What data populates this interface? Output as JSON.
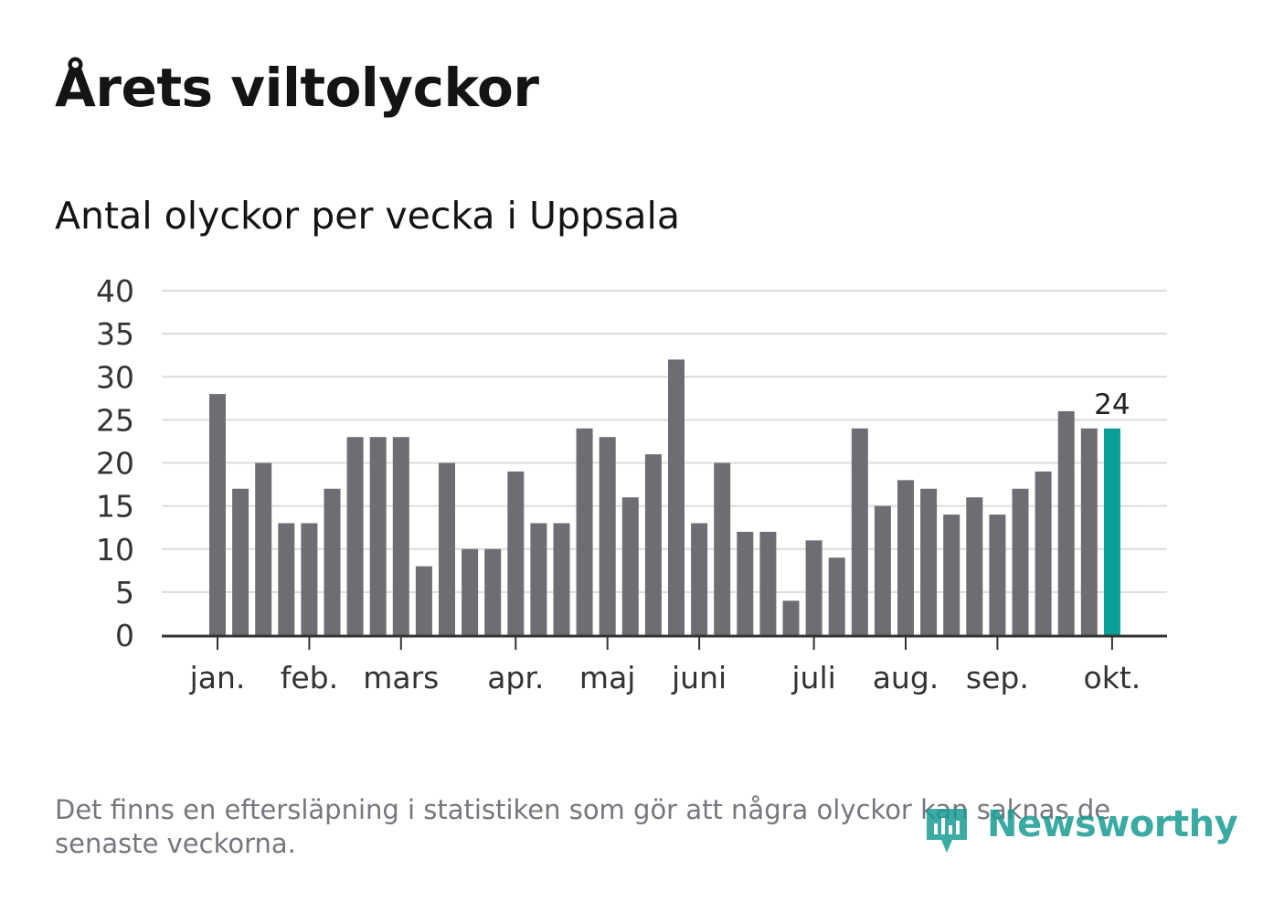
{
  "title": "Årets viltolyckor",
  "subtitle": "Antal olyckor per vecka i Uppsala",
  "footnote": "Det finns en eftersläpning i statistiken som gör att några olyckor kan saknas de senaste veckorna.",
  "brand": "Newsworthy",
  "colors": {
    "bar": "#6e6d73",
    "highlight": "#0a9f98",
    "grid": "#dcdcdc",
    "axis": "#333333",
    "brand": "#1a9c94"
  },
  "chart_data": {
    "type": "bar",
    "title": "Antal olyckor per vecka i Uppsala",
    "xlabel": "",
    "ylabel": "",
    "ylim": [
      0,
      40
    ],
    "y_ticks": [
      0,
      5,
      10,
      15,
      20,
      25,
      30,
      35,
      40
    ],
    "values": [
      28,
      17,
      20,
      13,
      13,
      17,
      23,
      23,
      23,
      8,
      20,
      10,
      10,
      19,
      13,
      13,
      24,
      23,
      16,
      21,
      32,
      13,
      20,
      12,
      12,
      4,
      11,
      9,
      24,
      15,
      18,
      17,
      14,
      16,
      14,
      17,
      19,
      26,
      24,
      24
    ],
    "highlight_index": 39,
    "highlight_label": "24",
    "month_labels": [
      {
        "label": "jan.",
        "week_index": 0
      },
      {
        "label": "feb.",
        "week_index": 4
      },
      {
        "label": "mars",
        "week_index": 8
      },
      {
        "label": "apr.",
        "week_index": 13
      },
      {
        "label": "maj",
        "week_index": 17
      },
      {
        "label": "juni",
        "week_index": 21
      },
      {
        "label": "juli",
        "week_index": 26
      },
      {
        "label": "aug.",
        "week_index": 30
      },
      {
        "label": "sep.",
        "week_index": 34
      },
      {
        "label": "okt.",
        "week_index": 39
      }
    ]
  }
}
